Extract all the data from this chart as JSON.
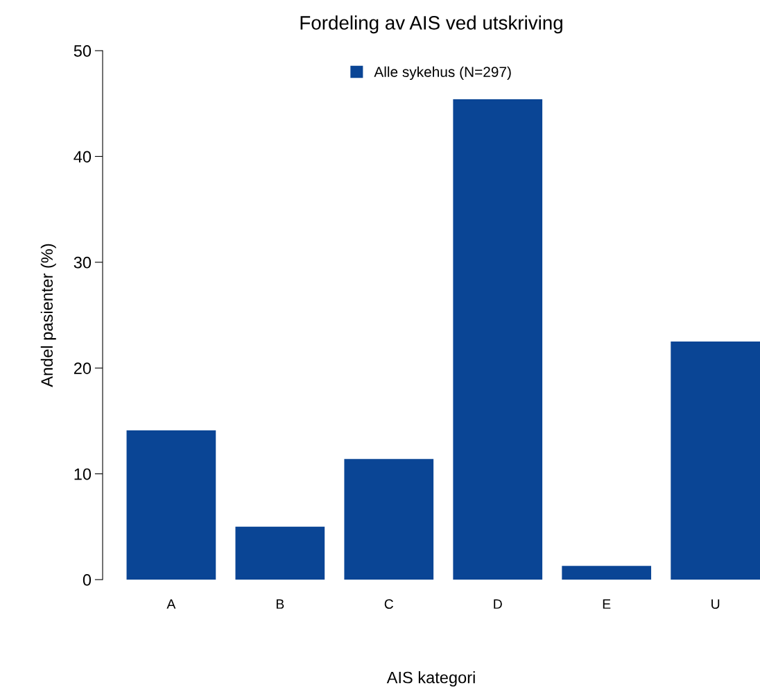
{
  "chart_data": {
    "type": "bar",
    "title": "Fordeling av AIS ved utskriving",
    "xlabel": "AIS kategori",
    "ylabel": "Andel pasienter (%)",
    "categories": [
      "A",
      "B",
      "C",
      "D",
      "E",
      "U"
    ],
    "series": [
      {
        "name": "Alle sykehus (N=297)",
        "color": "#0a4595",
        "values": [
          14.1,
          5.0,
          11.4,
          45.4,
          1.3,
          22.5
        ]
      }
    ],
    "ylim": [
      0,
      50
    ],
    "yticks": [
      0,
      10,
      20,
      30,
      40,
      50
    ],
    "grid": false,
    "legend": "top"
  }
}
